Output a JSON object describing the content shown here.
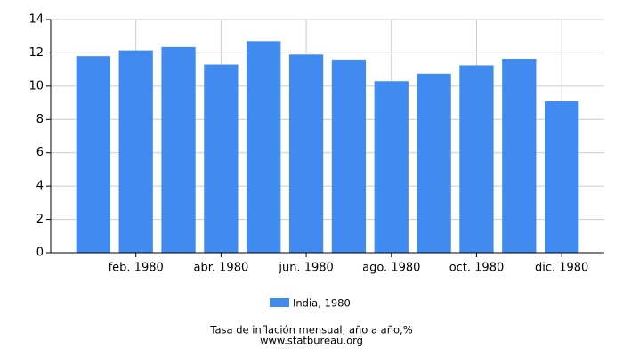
{
  "chart_data": {
    "type": "bar",
    "title": "Tasa de inflación mensual, año a año,%",
    "subtitle": "www.statbureau.org",
    "categories": [
      null,
      "feb. 1980",
      null,
      "abr. 1980",
      null,
      "jun. 1980",
      null,
      "ago. 1980",
      null,
      "oct. 1980",
      null,
      "dic. 1980"
    ],
    "series": [
      {
        "name": "India, 1980",
        "color": "#418bf0",
        "values": [
          11.8,
          12.15,
          12.35,
          11.3,
          12.7,
          11.9,
          11.6,
          10.3,
          10.75,
          11.25,
          11.65,
          9.1
        ]
      }
    ],
    "ylim": [
      0,
      14
    ],
    "yticks": [
      0,
      2,
      4,
      6,
      8,
      10,
      12,
      14
    ],
    "grid": true
  }
}
